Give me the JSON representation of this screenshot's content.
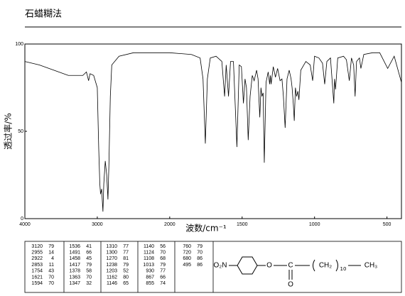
{
  "header": {
    "title": "石蜡糊法"
  },
  "chart_data": {
    "type": "line",
    "y_label": "透过率/%",
    "x_label": "波数/cm⁻¹",
    "xlim": [
      4000,
      400
    ],
    "xticks": [
      4000,
      3000,
      2000,
      1500,
      1000,
      500
    ],
    "ylim": [
      0,
      100
    ],
    "yticks": [
      0,
      50,
      100
    ],
    "x": [
      4000,
      3800,
      3600,
      3400,
      3200,
      3150,
      3120,
      3100,
      3050,
      3000,
      2980,
      2965,
      2955,
      2940,
      2922,
      2910,
      2890,
      2870,
      2853,
      2840,
      2820,
      2800,
      2700,
      2500,
      2200,
      2000,
      1850,
      1790,
      1770,
      1754,
      1740,
      1720,
      1680,
      1640,
      1621,
      1610,
      1594,
      1580,
      1560,
      1536,
      1520,
      1505,
      1491,
      1480,
      1470,
      1458,
      1445,
      1430,
      1417,
      1400,
      1390,
      1378,
      1370,
      1363,
      1355,
      1347,
      1335,
      1320,
      1310,
      1305,
      1300,
      1285,
      1270,
      1255,
      1238,
      1225,
      1215,
      1203,
      1190,
      1175,
      1162,
      1155,
      1146,
      1140,
      1132,
      1124,
      1115,
      1108,
      1095,
      1060,
      1030,
      1013,
      1000,
      970,
      945,
      930,
      915,
      890,
      867,
      862,
      855,
      840,
      800,
      780,
      760,
      745,
      730,
      720,
      710,
      690,
      680,
      660,
      600,
      550,
      495,
      450,
      400
    ],
    "series": [
      {
        "color": "#000000",
        "values": [
          90,
          88,
          85,
          82,
          82,
          84,
          79,
          83,
          82,
          75,
          40,
          20,
          14,
          17,
          4,
          20,
          33,
          25,
          11,
          30,
          70,
          88,
          93,
          95,
          95,
          95,
          94,
          92,
          80,
          43,
          80,
          92,
          93,
          90,
          70,
          88,
          70,
          90,
          90,
          41,
          88,
          87,
          66,
          80,
          75,
          45,
          70,
          82,
          79,
          85,
          80,
          58,
          75,
          70,
          72,
          32,
          78,
          84,
          77,
          82,
          77,
          87,
          81,
          86,
          79,
          80,
          70,
          52,
          80,
          85,
          80,
          75,
          65,
          56,
          75,
          70,
          73,
          68,
          85,
          90,
          88,
          79,
          93,
          92,
          89,
          77,
          90,
          92,
          66,
          80,
          74,
          92,
          93,
          91,
          79,
          92,
          88,
          70,
          90,
          92,
          86,
          94,
          95,
          95,
          86,
          93,
          78
        ]
      }
    ]
  },
  "peak_table": [
    [
      [
        3120,
        79
      ],
      [
        2955,
        14
      ],
      [
        2922,
        4
      ],
      [
        2853,
        11
      ],
      [
        1754,
        43
      ],
      [
        1621,
        70
      ],
      [
        1594,
        70
      ]
    ],
    [
      [
        1536,
        41
      ],
      [
        1491,
        66
      ],
      [
        1458,
        45
      ],
      [
        1417,
        79
      ],
      [
        1378,
        58
      ],
      [
        1363,
        70
      ],
      [
        1347,
        32
      ]
    ],
    [
      [
        1310,
        77
      ],
      [
        1300,
        77
      ],
      [
        1270,
        81
      ],
      [
        1238,
        79
      ],
      [
        1203,
        52
      ],
      [
        1162,
        80
      ],
      [
        1146,
        65
      ]
    ],
    [
      [
        1140,
        56
      ],
      [
        1124,
        70
      ],
      [
        1108,
        68
      ],
      [
        1013,
        79
      ],
      [
        930,
        77
      ],
      [
        867,
        66
      ],
      [
        855,
        74
      ]
    ],
    [
      [
        760,
        79
      ],
      [
        720,
        70
      ],
      [
        680,
        86
      ],
      [
        495,
        86
      ]
    ]
  ],
  "structure": {
    "nitro": "O₂N",
    "ether_o": "O",
    "carbon": "C",
    "carbonyl_o": "O",
    "chain": "CH₂",
    "repeat": "10",
    "end": "CH₃"
  }
}
